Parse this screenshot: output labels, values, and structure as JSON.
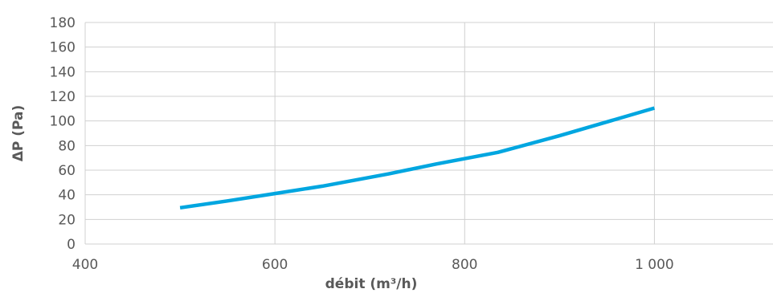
{
  "chart_data": {
    "type": "line",
    "title": "",
    "xlabel": "débit (m³/h)",
    "ylabel": "ΔP (Pa)",
    "xlim": [
      400,
      1125
    ],
    "ylim": [
      0,
      180
    ],
    "x_ticks": [
      400,
      600,
      800,
      1000
    ],
    "x_tick_labels": [
      "400",
      "600",
      "800",
      "1 000"
    ],
    "y_ticks": [
      0,
      20,
      40,
      60,
      80,
      100,
      120,
      140,
      160,
      180
    ],
    "y_tick_labels": [
      "0",
      "20",
      "40",
      "60",
      "80",
      "100",
      "120",
      "140",
      "160",
      "180"
    ],
    "grid": true,
    "legend": "none",
    "series": [
      {
        "color": "#00a6e0",
        "x": [
          500,
          550,
          600,
          650,
          720,
          770,
          835,
          900,
          1000
        ],
        "y": [
          29.5,
          35,
          41,
          47,
          57,
          65,
          74.5,
          88,
          110.5
        ]
      }
    ]
  }
}
